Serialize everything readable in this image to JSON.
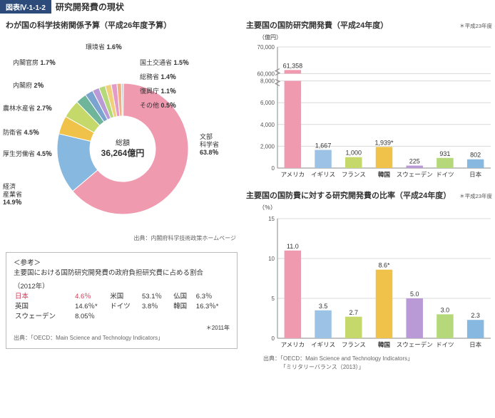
{
  "figure": {
    "number": "図表Ⅳ-1-1-2",
    "title": "研究開発費の現状"
  },
  "pie": {
    "title": "わが国の科学技術関係予算（平成26年度予算）",
    "center_label": "総額",
    "center_value": "36,264億円",
    "source": "出典：内閣府科学技術政策ホームページ",
    "slices": [
      {
        "label": "文部\n科学省",
        "pct": 63.8,
        "color": "#f09ab0"
      },
      {
        "label": "経済\n産業省",
        "pct": 14.9,
        "color": "#87b8e0"
      },
      {
        "label": "厚生労働省",
        "pct": 4.5,
        "color": "#f0c24a"
      },
      {
        "label": "防衛省",
        "pct": 4.5,
        "color": "#c5d96a"
      },
      {
        "label": "農林水産省",
        "pct": 2.7,
        "color": "#6eb59a"
      },
      {
        "label": "内閣府",
        "pct": 2.0,
        "color": "#7aa3d0"
      },
      {
        "label": "内閣官房",
        "pct": 1.7,
        "color": "#ba9ad6"
      },
      {
        "label": "環境省",
        "pct": 1.6,
        "color": "#b5d97a"
      },
      {
        "label": "国土交通省",
        "pct": 1.5,
        "color": "#f0d07a"
      },
      {
        "label": "総務省",
        "pct": 1.4,
        "color": "#e59ac8"
      },
      {
        "label": "復興庁",
        "pct": 1.1,
        "color": "#f0b080"
      },
      {
        "label": "その他",
        "pct": 0.5,
        "color": "#d0d0d0"
      }
    ]
  },
  "bar1": {
    "title": "主要国の国防研究開発費（平成24年度）",
    "note": "＊平成23年度",
    "unit": "（億円）",
    "ymax": 70000,
    "ystep": 2000,
    "break_at": 8000,
    "break_to": 60000,
    "ticks_low": [
      0,
      2000,
      4000,
      6000,
      8000
    ],
    "ticks_high": [
      60000,
      70000
    ],
    "categories": [
      "アメリカ",
      "イギリス",
      "フランス",
      "韓国",
      "スウェーデン",
      "ドイツ",
      "日本"
    ],
    "values": [
      61358,
      1667,
      1000,
      1939,
      225,
      931,
      802
    ],
    "value_labels": [
      "61,358",
      "1,667",
      "1,000",
      "1,939*",
      "225",
      "931",
      "802"
    ],
    "colors": [
      "#f09ab0",
      "#9cc3e6",
      "#c5d96a",
      "#f0c24a",
      "#ba9ad6",
      "#b5d97a",
      "#87b8e0"
    ],
    "bold_idx": 3,
    "grid_color": "#d8d8d8",
    "axis_color": "#888"
  },
  "bar2": {
    "title": "主要国の国防費に対する研究開発費の比率（平成24年度）",
    "note": "＊平成23年度",
    "unit": "（％）",
    "ymax": 15,
    "ystep": 5,
    "ticks": [
      0,
      5,
      10,
      15
    ],
    "categories": [
      "アメリカ",
      "イギリス",
      "フランス",
      "韓国",
      "スウェーデン",
      "ドイツ",
      "日本"
    ],
    "values": [
      11.0,
      3.5,
      2.7,
      8.6,
      5.0,
      3.0,
      2.3
    ],
    "value_labels": [
      "11.0",
      "3.5",
      "2.7",
      "8.6*",
      "5.0",
      "3.0",
      "2.3"
    ],
    "colors": [
      "#f09ab0",
      "#9cc3e6",
      "#c5d96a",
      "#f0c24a",
      "#ba9ad6",
      "#b5d97a",
      "#87b8e0"
    ],
    "bold_idx": 3,
    "grid_color": "#d8d8d8",
    "axis_color": "#888",
    "source1": "出典：「OECD：Main Science and Technology Indicators」",
    "source2": "「ミリタリーバランス（2013）」"
  },
  "refbox": {
    "heading": "＜参考＞",
    "sub": "主要国における国防研究開発費の政府負担研究費に占める割合",
    "year": "（2012年）",
    "rows": [
      [
        "日本",
        "4.6％",
        "米国",
        "53.1％",
        "仏国",
        "6.3％"
      ],
      [
        "英国",
        "14.6％*",
        "ドイツ",
        "3.8％",
        "韓国",
        "16.3％*"
      ],
      [
        "スウェーデン",
        "8.05％",
        "",
        "",
        "",
        ""
      ]
    ],
    "footnote": "＊2011年",
    "source": "出典：「OECD：Main Science and Technology Indicators」"
  }
}
